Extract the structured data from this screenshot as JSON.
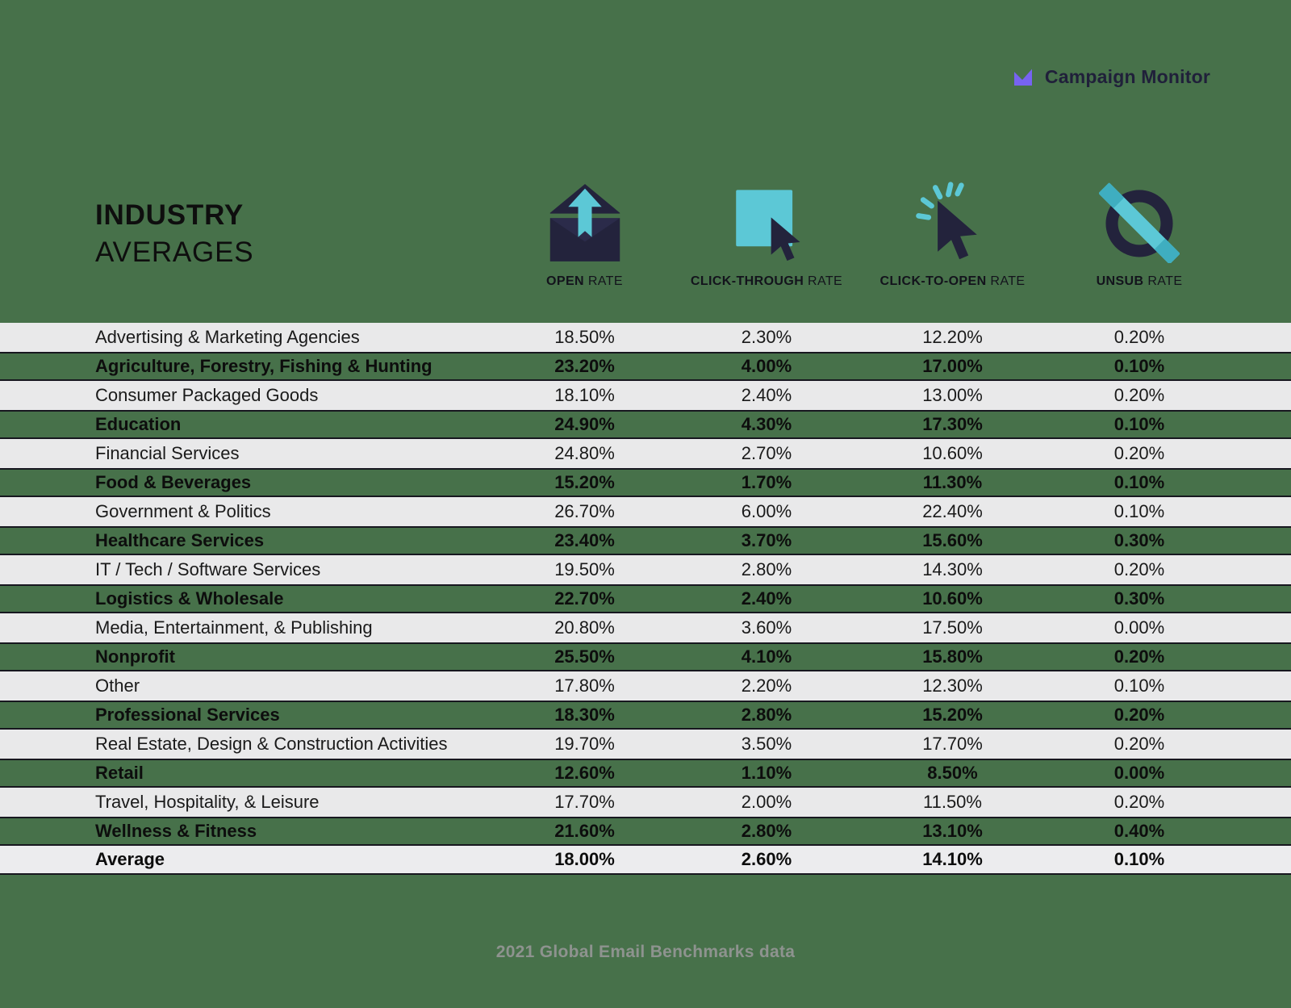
{
  "logo": {
    "brand": "Campaign Monitor",
    "icon": "campaign-monitor-mark-icon"
  },
  "title": {
    "line1": "INDUSTRY",
    "line2": "AVERAGES"
  },
  "header": {
    "columns": [
      {
        "bold": "OPEN",
        "rest": " RATE",
        "icon": "open-rate-envelope-icon"
      },
      {
        "bold": "CLICK-THROUGH",
        "rest": " RATE",
        "icon": "click-through-cursor-icon"
      },
      {
        "bold": "CLICK-TO-OPEN",
        "rest": " RATE",
        "icon": "click-to-open-cursor-icon"
      },
      {
        "bold": "UNSUB",
        "rest": " RATE",
        "icon": "unsub-blocked-icon"
      }
    ]
  },
  "table": {
    "rows": [
      {
        "industry": "Advertising & Marketing Agencies",
        "open_rate": "18.50%",
        "click_through_rate": "2.30%",
        "click_to_open_rate": "12.20%",
        "unsub_rate": "0.20%",
        "highlight": false,
        "is_average": false
      },
      {
        "industry": "Agriculture, Forestry, Fishing & Hunting",
        "open_rate": "23.20%",
        "click_through_rate": "4.00%",
        "click_to_open_rate": "17.00%",
        "unsub_rate": "0.10%",
        "highlight": true,
        "is_average": false
      },
      {
        "industry": "Consumer Packaged Goods",
        "open_rate": "18.10%",
        "click_through_rate": "2.40%",
        "click_to_open_rate": "13.00%",
        "unsub_rate": "0.20%",
        "highlight": false,
        "is_average": false
      },
      {
        "industry": "Education",
        "open_rate": "24.90%",
        "click_through_rate": "4.30%",
        "click_to_open_rate": "17.30%",
        "unsub_rate": "0.10%",
        "highlight": true,
        "is_average": false
      },
      {
        "industry": "Financial Services",
        "open_rate": "24.80%",
        "click_through_rate": "2.70%",
        "click_to_open_rate": "10.60%",
        "unsub_rate": "0.20%",
        "highlight": false,
        "is_average": false
      },
      {
        "industry": "Food & Beverages",
        "open_rate": "15.20%",
        "click_through_rate": "1.70%",
        "click_to_open_rate": "11.30%",
        "unsub_rate": "0.10%",
        "highlight": true,
        "is_average": false
      },
      {
        "industry": "Government & Politics",
        "open_rate": "26.70%",
        "click_through_rate": "6.00%",
        "click_to_open_rate": "22.40%",
        "unsub_rate": "0.10%",
        "highlight": false,
        "is_average": false
      },
      {
        "industry": "Healthcare Services",
        "open_rate": "23.40%",
        "click_through_rate": "3.70%",
        "click_to_open_rate": "15.60%",
        "unsub_rate": "0.30%",
        "highlight": true,
        "is_average": false
      },
      {
        "industry": "IT / Tech / Software Services",
        "open_rate": "19.50%",
        "click_through_rate": "2.80%",
        "click_to_open_rate": "14.30%",
        "unsub_rate": "0.20%",
        "highlight": false,
        "is_average": false
      },
      {
        "industry": "Logistics & Wholesale",
        "open_rate": "22.70%",
        "click_through_rate": "2.40%",
        "click_to_open_rate": "10.60%",
        "unsub_rate": "0.30%",
        "highlight": true,
        "is_average": false
      },
      {
        "industry": "Media, Entertainment, & Publishing",
        "open_rate": "20.80%",
        "click_through_rate": "3.60%",
        "click_to_open_rate": "17.50%",
        "unsub_rate": "0.00%",
        "highlight": false,
        "is_average": false
      },
      {
        "industry": "Nonprofit",
        "open_rate": "25.50%",
        "click_through_rate": "4.10%",
        "click_to_open_rate": "15.80%",
        "unsub_rate": "0.20%",
        "highlight": true,
        "is_average": false
      },
      {
        "industry": "Other",
        "open_rate": "17.80%",
        "click_through_rate": "2.20%",
        "click_to_open_rate": "12.30%",
        "unsub_rate": "0.10%",
        "highlight": false,
        "is_average": false
      },
      {
        "industry": "Professional Services",
        "open_rate": "18.30%",
        "click_through_rate": "2.80%",
        "click_to_open_rate": "15.20%",
        "unsub_rate": "0.20%",
        "highlight": true,
        "is_average": false
      },
      {
        "industry": "Real Estate, Design & Construction Activities",
        "open_rate": "19.70%",
        "click_through_rate": "3.50%",
        "click_to_open_rate": "17.70%",
        "unsub_rate": "0.20%",
        "highlight": false,
        "is_average": false
      },
      {
        "industry": "Retail",
        "open_rate": "12.60%",
        "click_through_rate": "1.10%",
        "click_to_open_rate": "8.50%",
        "unsub_rate": "0.00%",
        "highlight": true,
        "is_average": false
      },
      {
        "industry": "Travel, Hospitality, & Leisure",
        "open_rate": "17.70%",
        "click_through_rate": "2.00%",
        "click_to_open_rate": "11.50%",
        "unsub_rate": "0.20%",
        "highlight": false,
        "is_average": false
      },
      {
        "industry": "Wellness & Fitness",
        "open_rate": "21.60%",
        "click_through_rate": "2.80%",
        "click_to_open_rate": "13.10%",
        "unsub_rate": "0.40%",
        "highlight": true,
        "is_average": false
      },
      {
        "industry": "Average",
        "open_rate": "18.00%",
        "click_through_rate": "2.60%",
        "click_to_open_rate": "14.10%",
        "unsub_rate": "0.10%",
        "highlight": false,
        "is_average": true
      }
    ]
  },
  "footer": {
    "caption": "2021 Global Email Benchmarks data"
  },
  "colors": {
    "background_green": "#47714A",
    "row_gray": "#E9E9EA",
    "row_border_dark": "#17171F",
    "icon_navy": "#23233C",
    "icon_teal": "#5CC8D6",
    "icon_teal_dark": "#3FAEC0",
    "logo_purple": "#7763F1",
    "caption_gray": "#8E938F"
  },
  "chart_data": {
    "type": "table",
    "title": "INDUSTRY AVERAGES",
    "note": "2021 Global Email Benchmarks data",
    "columns": [
      "Industry",
      "Open Rate %",
      "Click-Through Rate %",
      "Click-To-Open Rate %",
      "Unsub Rate %"
    ],
    "rows": [
      [
        "Advertising & Marketing Agencies",
        18.5,
        2.3,
        12.2,
        0.2
      ],
      [
        "Agriculture, Forestry, Fishing & Hunting",
        23.2,
        4.0,
        17.0,
        0.1
      ],
      [
        "Consumer Packaged Goods",
        18.1,
        2.4,
        13.0,
        0.2
      ],
      [
        "Education",
        24.9,
        4.3,
        17.3,
        0.1
      ],
      [
        "Financial Services",
        24.8,
        2.7,
        10.6,
        0.2
      ],
      [
        "Food & Beverages",
        15.2,
        1.7,
        11.3,
        0.1
      ],
      [
        "Government & Politics",
        26.7,
        6.0,
        22.4,
        0.1
      ],
      [
        "Healthcare Services",
        23.4,
        3.7,
        15.6,
        0.3
      ],
      [
        "IT / Tech / Software Services",
        19.5,
        2.8,
        14.3,
        0.2
      ],
      [
        "Logistics & Wholesale",
        22.7,
        2.4,
        10.6,
        0.3
      ],
      [
        "Media, Entertainment, & Publishing",
        20.8,
        3.6,
        17.5,
        0.0
      ],
      [
        "Nonprofit",
        25.5,
        4.1,
        15.8,
        0.2
      ],
      [
        "Other",
        17.8,
        2.2,
        12.3,
        0.1
      ],
      [
        "Professional Services",
        18.3,
        2.8,
        15.2,
        0.2
      ],
      [
        "Real Estate, Design & Construction Activities",
        19.7,
        3.5,
        17.7,
        0.2
      ],
      [
        "Retail",
        12.6,
        1.1,
        8.5,
        0.0
      ],
      [
        "Travel, Hospitality, & Leisure",
        17.7,
        2.0,
        11.5,
        0.2
      ],
      [
        "Wellness & Fitness",
        21.6,
        2.8,
        13.1,
        0.4
      ],
      [
        "Average",
        18.0,
        2.6,
        14.1,
        0.1
      ]
    ]
  }
}
